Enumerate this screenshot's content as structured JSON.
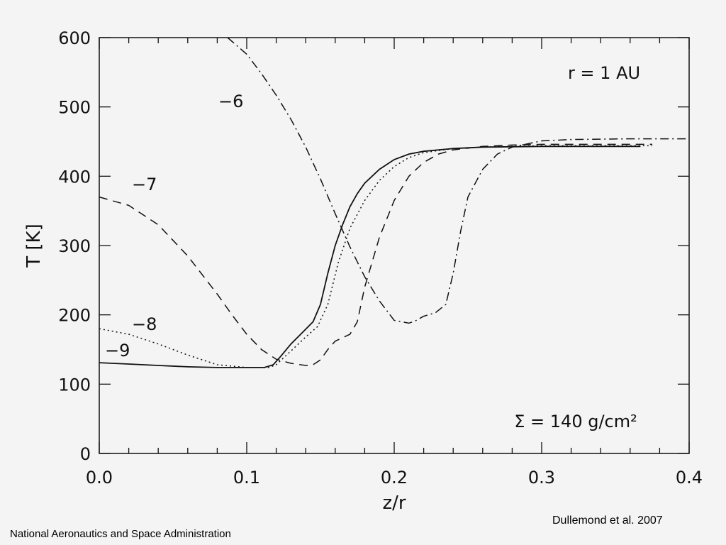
{
  "chart_data": {
    "type": "line",
    "xlabel": "z/r",
    "ylabel": "T [K]",
    "xlim": [
      0.0,
      0.4
    ],
    "ylim": [
      0,
      600
    ],
    "xticks": [
      "0.0",
      "0.1",
      "0.2",
      "0.3",
      "0.4"
    ],
    "yticks": [
      "0",
      "100",
      "200",
      "300",
      "400",
      "500",
      "600"
    ],
    "grid": false,
    "annotations": {
      "radius": "r = 1 AU",
      "surface_density": "Σ = 140 g/cm²"
    },
    "series": [
      {
        "name": "−9",
        "style": "solid",
        "points": [
          [
            0.0,
            131
          ],
          [
            0.02,
            129
          ],
          [
            0.04,
            127
          ],
          [
            0.06,
            125
          ],
          [
            0.08,
            124
          ],
          [
            0.1,
            124
          ],
          [
            0.112,
            124
          ],
          [
            0.118,
            128
          ],
          [
            0.123,
            140
          ],
          [
            0.13,
            158
          ],
          [
            0.138,
            175
          ],
          [
            0.145,
            190
          ],
          [
            0.15,
            215
          ],
          [
            0.155,
            260
          ],
          [
            0.16,
            300
          ],
          [
            0.165,
            330
          ],
          [
            0.17,
            356
          ],
          [
            0.175,
            375
          ],
          [
            0.18,
            390
          ],
          [
            0.19,
            410
          ],
          [
            0.2,
            424
          ],
          [
            0.21,
            432
          ],
          [
            0.22,
            436
          ],
          [
            0.24,
            440
          ],
          [
            0.26,
            442
          ],
          [
            0.3,
            443
          ],
          [
            0.34,
            443
          ],
          [
            0.367,
            443
          ]
        ]
      },
      {
        "name": "−8",
        "style": "dotted",
        "points": [
          [
            0.0,
            180
          ],
          [
            0.02,
            172
          ],
          [
            0.04,
            158
          ],
          [
            0.06,
            142
          ],
          [
            0.08,
            128
          ],
          [
            0.1,
            124
          ],
          [
            0.115,
            124
          ],
          [
            0.12,
            128
          ],
          [
            0.13,
            148
          ],
          [
            0.14,
            168
          ],
          [
            0.148,
            183
          ],
          [
            0.155,
            215
          ],
          [
            0.162,
            275
          ],
          [
            0.17,
            325
          ],
          [
            0.18,
            365
          ],
          [
            0.19,
            394
          ],
          [
            0.2,
            414
          ],
          [
            0.21,
            427
          ],
          [
            0.22,
            434
          ],
          [
            0.24,
            440
          ],
          [
            0.26,
            442
          ],
          [
            0.28,
            443
          ],
          [
            0.3,
            444
          ],
          [
            0.34,
            444
          ],
          [
            0.375,
            444
          ]
        ]
      },
      {
        "name": "−7",
        "style": "dashed",
        "points": [
          [
            0.0,
            370
          ],
          [
            0.02,
            358
          ],
          [
            0.04,
            330
          ],
          [
            0.06,
            285
          ],
          [
            0.08,
            230
          ],
          [
            0.09,
            200
          ],
          [
            0.1,
            172
          ],
          [
            0.11,
            150
          ],
          [
            0.12,
            136
          ],
          [
            0.13,
            130
          ],
          [
            0.14,
            127
          ],
          [
            0.145,
            128
          ],
          [
            0.15,
            135
          ],
          [
            0.155,
            150
          ],
          [
            0.16,
            162
          ],
          [
            0.17,
            172
          ],
          [
            0.175,
            190
          ],
          [
            0.18,
            240
          ],
          [
            0.19,
            312
          ],
          [
            0.2,
            365
          ],
          [
            0.21,
            400
          ],
          [
            0.22,
            420
          ],
          [
            0.23,
            432
          ],
          [
            0.24,
            438
          ],
          [
            0.26,
            443
          ],
          [
            0.28,
            445
          ],
          [
            0.3,
            446
          ],
          [
            0.34,
            446
          ],
          [
            0.375,
            446
          ]
        ]
      },
      {
        "name": "−6",
        "style": "dashdot",
        "points": [
          [
            0.087,
            600
          ],
          [
            0.1,
            576
          ],
          [
            0.11,
            548
          ],
          [
            0.12,
            517
          ],
          [
            0.13,
            482
          ],
          [
            0.14,
            442
          ],
          [
            0.15,
            396
          ],
          [
            0.16,
            346
          ],
          [
            0.17,
            298
          ],
          [
            0.18,
            255
          ],
          [
            0.19,
            220
          ],
          [
            0.2,
            192
          ],
          [
            0.21,
            188
          ],
          [
            0.215,
            192
          ],
          [
            0.22,
            198
          ],
          [
            0.228,
            203
          ],
          [
            0.235,
            215
          ],
          [
            0.24,
            260
          ],
          [
            0.245,
            320
          ],
          [
            0.25,
            370
          ],
          [
            0.26,
            410
          ],
          [
            0.27,
            432
          ],
          [
            0.28,
            442
          ],
          [
            0.3,
            451
          ],
          [
            0.32,
            453
          ],
          [
            0.36,
            454
          ],
          [
            0.4,
            454
          ]
        ]
      }
    ],
    "series_label_positions_note": ""
  },
  "footer": {
    "left": "National Aeronautics and Space Administration",
    "right": "Dullemond et al. 2007"
  }
}
